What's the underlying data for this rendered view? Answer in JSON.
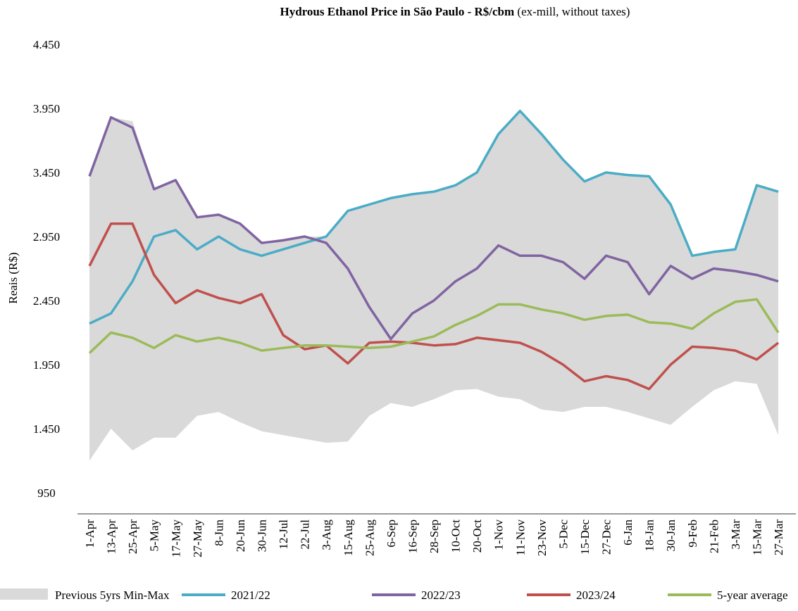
{
  "chart_data": {
    "type": "line",
    "title": "Hydrous Ethanol Price in São Paulo - R$/cbm",
    "title_note": "(ex-mill, without taxes)",
    "y_label": "Reais (R$)",
    "categories": [
      "1-Apr",
      "13-Apr",
      "25-Apr",
      "5-May",
      "17-May",
      "27-May",
      "8-Jun",
      "20-Jun",
      "30-Jun",
      "12-Jul",
      "22-Jul",
      "3-Aug",
      "15-Aug",
      "25-Aug",
      "6-Sep",
      "16-Sep",
      "28-Sep",
      "10-Oct",
      "20-Oct",
      "1-Nov",
      "11-Nov",
      "23-Nov",
      "5-Dec",
      "15-Dec",
      "27-Dec",
      "6-Jan",
      "18-Jan",
      "30-Jan",
      "9-Feb",
      "21-Feb",
      "3-Mar",
      "15-Mar",
      "27-Mar"
    ],
    "ylim": [
      785,
      4450
    ],
    "yticks": [
      {
        "value": 950,
        "label": "950"
      },
      {
        "value": 1450,
        "label": "1.450"
      },
      {
        "value": 1950,
        "label": "1.950"
      },
      {
        "value": 2450,
        "label": "2.450"
      },
      {
        "value": 2950,
        "label": "2.950"
      },
      {
        "value": 3450,
        "label": "3.450"
      },
      {
        "value": 3950,
        "label": "3.950"
      },
      {
        "value": 4450,
        "label": "4.450"
      }
    ],
    "band": {
      "name": "Previous 5yrs Min-Max",
      "color": "#d9d9d9",
      "high": [
        3400,
        3880,
        3850,
        3330,
        3390,
        3100,
        3120,
        3050,
        2900,
        2920,
        2950,
        2950,
        3150,
        3200,
        3250,
        3280,
        3300,
        3350,
        3450,
        3750,
        3930,
        3750,
        3550,
        3380,
        3450,
        3430,
        3420,
        3200,
        2800,
        2830,
        2850,
        3350,
        3300
      ],
      "low": [
        1200,
        1450,
        1280,
        1380,
        1380,
        1550,
        1580,
        1500,
        1430,
        1400,
        1370,
        1340,
        1350,
        1550,
        1650,
        1620,
        1680,
        1750,
        1760,
        1700,
        1680,
        1600,
        1580,
        1620,
        1620,
        1580,
        1530,
        1480,
        1620,
        1750,
        1820,
        1800,
        1400
      ]
    },
    "series": [
      {
        "name": "2021/22",
        "color": "#4bacc6",
        "values": [
          2270,
          2350,
          2600,
          2950,
          3000,
          2850,
          2950,
          2850,
          2800,
          2850,
          2900,
          2950,
          3150,
          3200,
          3250,
          3280,
          3300,
          3350,
          3450,
          3750,
          3930,
          3750,
          3550,
          3380,
          3450,
          3430,
          3420,
          3200,
          2800,
          2830,
          2850,
          3350,
          3300
        ]
      },
      {
        "name": "2022/23",
        "color": "#8064a2",
        "values": [
          3420,
          3880,
          3800,
          3320,
          3390,
          3100,
          3120,
          3050,
          2900,
          2920,
          2950,
          2900,
          2700,
          2400,
          2150,
          2350,
          2450,
          2600,
          2700,
          2880,
          2800,
          2800,
          2750,
          2620,
          2800,
          2750,
          2500,
          2720,
          2620,
          2700,
          2680,
          2650,
          2600
        ]
      },
      {
        "name": "2023/24",
        "color": "#c0504d",
        "values": [
          2720,
          3050,
          3050,
          2650,
          2430,
          2530,
          2470,
          2430,
          2500,
          2180,
          2070,
          2100,
          1960,
          2120,
          2130,
          2120,
          2100,
          2110,
          2160,
          2140,
          2120,
          2050,
          1950,
          1820,
          1860,
          1830,
          1760,
          1950,
          2090,
          2080,
          2060,
          1990,
          2120
        ]
      },
      {
        "name": "5-year average",
        "color": "#9bbb59",
        "values": [
          2040,
          2200,
          2160,
          2080,
          2180,
          2130,
          2160,
          2120,
          2060,
          2080,
          2100,
          2100,
          2090,
          2080,
          2090,
          2130,
          2170,
          2260,
          2330,
          2420,
          2420,
          2380,
          2350,
          2300,
          2330,
          2340,
          2280,
          2270,
          2230,
          2350,
          2440,
          2460,
          2200
        ]
      }
    ]
  }
}
